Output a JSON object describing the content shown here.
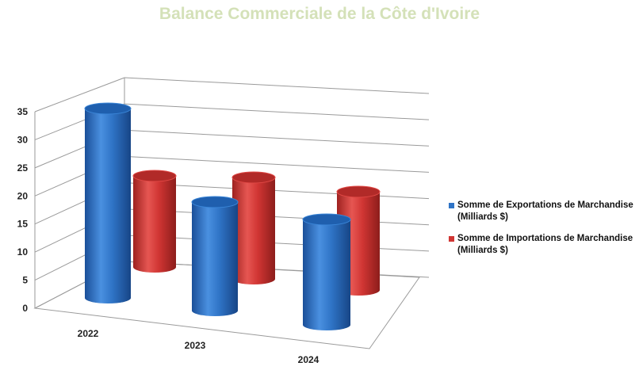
{
  "chart_data": {
    "type": "bar",
    "title": "Balance Commerciale de la Côte d'Ivoire",
    "categories": [
      "2022",
      "2023",
      "2024"
    ],
    "series": [
      {
        "name": "Somme de Exportations de Marchandise (Milliards $)",
        "values": [
          33.8,
          19.6,
          18.7
        ],
        "color": "#2f74c6"
      },
      {
        "name": "Somme de Importations de Marchandise (Milliards $)",
        "values": [
          16.6,
          17.4,
          17.9
        ],
        "color": "#d03533"
      }
    ],
    "yticks": [
      "0",
      "5",
      "10",
      "15",
      "20",
      "25",
      "30",
      "35"
    ],
    "ylim": [
      0,
      35
    ],
    "grid": true,
    "legend_position": "right",
    "style": "3d-cylinder"
  }
}
